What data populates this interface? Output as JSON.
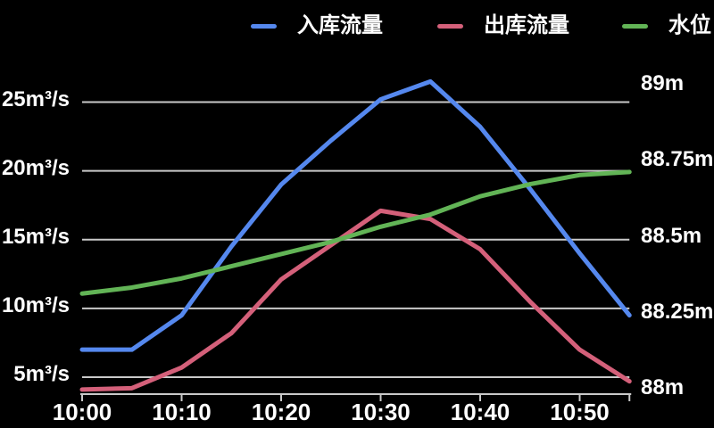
{
  "colors": {
    "background": "#000000",
    "grid": "#C9C9C9",
    "axis": "#C9C9C9",
    "text": "#FFFFFF"
  },
  "legend": {
    "position": "top",
    "items": [
      {
        "label": "入库流量",
        "color": "#5588EE"
      },
      {
        "label": "出库流量",
        "color": "#D4607A"
      },
      {
        "label": "水位",
        "color": "#62B456"
      }
    ]
  },
  "chart_data": {
    "type": "line",
    "title": "",
    "grid": "horizontal",
    "legend_position": "top",
    "x": [
      "10:00",
      "10:05",
      "10:10",
      "10:15",
      "10:20",
      "10:25",
      "10:30",
      "10:35",
      "10:40",
      "10:45",
      "10:50",
      "10:55"
    ],
    "x_axis": {
      "tick_labels": [
        "10:00",
        "10:10",
        "10:20",
        "10:30",
        "10:40",
        "10:50"
      ]
    },
    "left_axis": {
      "unit": "m³/s",
      "tick_labels": [
        "5m³/s",
        "10m³/s",
        "15m³/s",
        "20m³/s",
        "25m³/s"
      ],
      "tick_values": [
        5,
        10,
        15,
        20,
        25
      ]
    },
    "right_axis": {
      "unit": "m",
      "tick_labels": [
        "88m",
        "88.25m",
        "88.5m",
        "88.75m",
        "89m"
      ],
      "tick_values": [
        88,
        88.25,
        88.5,
        88.75,
        89
      ]
    },
    "series": [
      {
        "name": "入库流量",
        "axis": "left",
        "color": "#5588EE",
        "values": [
          7,
          7,
          9.5,
          14.5,
          19,
          22.2,
          25.2,
          26.5,
          23.2,
          18.7,
          14,
          9.5
        ]
      },
      {
        "name": "出库流量",
        "axis": "left",
        "color": "#D4607A",
        "values": [
          4.1,
          4.2,
          5.7,
          8.2,
          12.1,
          14.6,
          17.1,
          16.5,
          14.3,
          10.5,
          7,
          4.7
        ]
      },
      {
        "name": "水位",
        "axis": "right",
        "color": "#62B456",
        "values": [
          88.31,
          88.33,
          88.36,
          88.4,
          88.44,
          88.48,
          88.53,
          88.57,
          88.63,
          88.67,
          88.7,
          88.71
        ]
      }
    ]
  }
}
